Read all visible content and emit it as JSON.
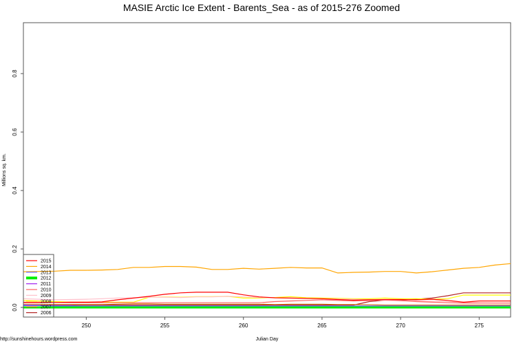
{
  "chart_data": {
    "type": "line",
    "title": "MASIE Arctic Ice Extent - Barents_Sea - as of 2015-276 Zoomed",
    "xlabel": "Julian Day",
    "ylabel": "Millions sq. km.",
    "xlim": [
      246,
      277
    ],
    "ylim": [
      0,
      0.974
    ],
    "xticks": [
      250,
      255,
      260,
      265,
      270,
      275
    ],
    "yticks": [
      0.0,
      0.2,
      0.4,
      0.6,
      0.8
    ],
    "ytick_labels": [
      "0.0",
      "0.2",
      "0.4",
      "0.6",
      "0.8"
    ],
    "grid": false,
    "legend_position": "bottom-left",
    "credit": "http://sunshinehours.wordpress.com",
    "x": [
      246,
      247,
      248,
      249,
      250,
      251,
      252,
      253,
      254,
      255,
      256,
      257,
      258,
      259,
      260,
      261,
      262,
      263,
      264,
      265,
      266,
      267,
      268,
      269,
      270,
      271,
      272,
      273,
      274,
      275,
      276,
      277
    ],
    "series": [
      {
        "name": "2015",
        "color": "#ff0000",
        "width": 1.2,
        "values": [
          0.016,
          0.016,
          0.017,
          0.018,
          0.018,
          0.019,
          0.026,
          0.032,
          0.038,
          0.045,
          0.05,
          0.052,
          0.052,
          0.052,
          0.043,
          0.036,
          0.033,
          0.032,
          0.031,
          0.03,
          0.027,
          0.025,
          0.026,
          0.027,
          0.027,
          0.026,
          0.028,
          0.024,
          0.018,
          0.022,
          0.022,
          0.022
        ]
      },
      {
        "name": "2014",
        "color": "#ffa500",
        "width": 1.2,
        "values": [
          0.122,
          0.123,
          0.124,
          0.127,
          0.127,
          0.128,
          0.13,
          0.137,
          0.137,
          0.14,
          0.14,
          0.138,
          0.13,
          0.13,
          0.134,
          0.131,
          0.134,
          0.137,
          0.135,
          0.135,
          0.118,
          0.12,
          0.121,
          0.123,
          0.123,
          0.118,
          0.122,
          0.128,
          0.134,
          0.137,
          0.145,
          0.15
        ]
      },
      {
        "name": "2013",
        "color": "#6a6aff",
        "width": 1.2,
        "values": [
          0.006,
          0.006,
          0.005,
          0.005,
          0.005,
          0.005,
          0.005,
          0.005,
          0.005,
          0.005,
          0.005,
          0.005,
          0.005,
          0.005,
          0.005,
          0.005,
          0.005,
          0.005,
          0.005,
          0.005,
          0.005,
          0.005,
          0.005,
          0.005,
          0.005,
          0.005,
          0.005,
          0.005,
          0.005,
          0.005,
          0.005,
          0.005
        ]
      },
      {
        "name": "2012",
        "color": "#00ee00",
        "width": 3,
        "values": [
          0.0,
          0.0,
          0.0,
          0.0,
          0.0,
          0.0,
          0.0,
          0.0,
          0.0,
          0.0,
          0.0,
          0.0,
          0.0,
          0.0,
          0.0,
          0.0,
          0.0,
          0.0,
          0.0,
          0.0,
          0.0,
          0.0,
          0.0,
          0.0,
          0.0,
          0.0,
          0.0,
          0.0,
          0.0,
          0.0,
          0.0,
          0.0
        ]
      },
      {
        "name": "2011",
        "color": "#a020f0",
        "width": 1.2,
        "values": [
          0.008,
          0.007,
          0.006,
          0.006,
          0.004,
          0.004,
          0.004,
          0.004,
          0.004,
          0.004,
          0.004,
          0.004,
          0.004,
          0.004,
          0.004,
          0.004,
          0.004,
          0.004,
          0.004,
          0.004,
          0.004,
          0.004,
          0.004,
          0.004,
          0.004,
          0.004,
          0.004,
          0.004,
          0.004,
          0.004,
          0.004,
          0.004
        ]
      },
      {
        "name": "2010",
        "color": "#ff6060",
        "width": 1.2,
        "values": [
          0.018,
          0.018,
          0.017,
          0.016,
          0.016,
          0.016,
          0.016,
          0.016,
          0.016,
          0.016,
          0.016,
          0.016,
          0.016,
          0.016,
          0.016,
          0.016,
          0.02,
          0.022,
          0.024,
          0.026,
          0.024,
          0.022,
          0.024,
          0.026,
          0.024,
          0.02,
          0.018,
          0.016,
          0.015,
          0.015,
          0.015,
          0.015
        ]
      },
      {
        "name": "2009",
        "color": "#ffc0cb",
        "width": 1.2,
        "values": [
          0.03,
          0.028,
          0.026,
          0.027,
          0.028,
          0.03,
          0.032,
          0.033,
          0.035,
          0.035,
          0.034,
          0.036,
          0.036,
          0.038,
          0.036,
          0.034,
          0.033,
          0.032,
          0.03,
          0.03,
          0.029,
          0.028,
          0.026,
          0.024,
          0.022,
          0.022,
          0.021,
          0.02,
          0.018,
          0.016,
          0.015,
          0.015
        ]
      },
      {
        "name": "2008",
        "color": "#ffff00",
        "width": 1.2,
        "values": [
          0.024,
          0.022,
          0.02,
          0.018,
          0.018,
          0.018,
          0.018,
          0.018,
          0.035,
          0.036,
          0.035,
          0.037,
          0.037,
          0.038,
          0.032,
          0.032,
          0.034,
          0.037,
          0.033,
          0.032,
          0.031,
          0.03,
          0.03,
          0.032,
          0.03,
          0.03,
          0.028,
          0.03,
          0.042,
          0.042,
          0.042,
          0.042
        ]
      },
      {
        "name": "2007",
        "color": "#cd6600",
        "width": 1.2,
        "values": [
          0.01,
          0.01,
          0.01,
          0.01,
          0.01,
          0.01,
          0.011,
          0.012,
          0.012,
          0.011,
          0.011,
          0.011,
          0.011,
          0.011,
          0.011,
          0.011,
          0.01,
          0.011,
          0.011,
          0.011,
          0.01,
          0.01,
          0.009,
          0.008,
          0.008,
          0.008,
          0.008,
          0.008,
          0.008,
          0.008,
          0.008,
          0.008
        ]
      },
      {
        "name": "2006",
        "color": "#b22222",
        "width": 1.2,
        "values": [
          0.008,
          0.008,
          0.008,
          0.008,
          0.008,
          0.008,
          0.008,
          0.008,
          0.008,
          0.008,
          0.008,
          0.008,
          0.008,
          0.008,
          0.008,
          0.008,
          0.008,
          0.008,
          0.008,
          0.008,
          0.008,
          0.008,
          0.02,
          0.025,
          0.025,
          0.028,
          0.032,
          0.04,
          0.05,
          0.05,
          0.05,
          0.05
        ]
      }
    ]
  }
}
